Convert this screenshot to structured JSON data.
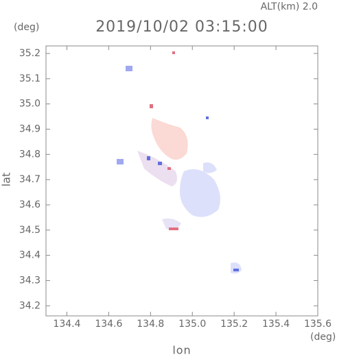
{
  "chart_data": {
    "type": "map",
    "title": "2019/10/02 03:15:00",
    "subtitle": "ALT(km) 2.0",
    "x_label": "lon",
    "y_label": "lat",
    "x_unit": "(deg)",
    "y_unit": "(deg)",
    "xlim": [
      134.3,
      135.6
    ],
    "ylim": [
      34.16,
      35.23
    ],
    "xticks": [
      134.4,
      134.6,
      134.8,
      {
        "value": 135,
        "label": "135.0"
      },
      135.2,
      135.4,
      135.6
    ],
    "yticks": [
      34.2,
      34.3,
      34.4,
      34.5,
      34.6,
      34.7,
      34.8,
      34.9,
      {
        "value": 35,
        "label": "35.0"
      },
      35.1,
      35.2
    ]
  }
}
